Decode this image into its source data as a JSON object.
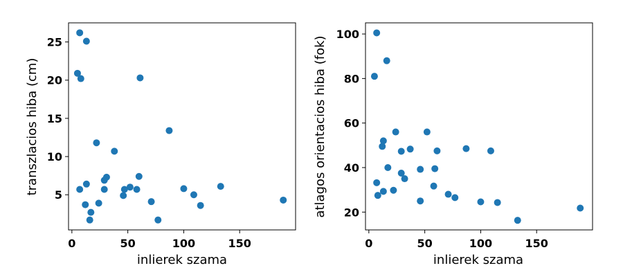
{
  "chart_data": [
    {
      "type": "scatter",
      "title": "",
      "xlabel": "inlierek szama",
      "ylabel": "transzlacios hiba (cm)",
      "xlim": [
        -3,
        200
      ],
      "ylim": [
        0.4,
        27.5
      ],
      "xticks": [
        0,
        50,
        100,
        150
      ],
      "yticks": [
        5,
        10,
        15,
        20,
        25
      ],
      "grid": false,
      "color": "#1f77b4",
      "points": [
        {
          "x": 7,
          "y": 26.2
        },
        {
          "x": 13,
          "y": 25.1
        },
        {
          "x": 5,
          "y": 20.9
        },
        {
          "x": 8,
          "y": 20.2
        },
        {
          "x": 61,
          "y": 20.3
        },
        {
          "x": 87,
          "y": 13.4
        },
        {
          "x": 22,
          "y": 11.8
        },
        {
          "x": 38,
          "y": 10.7
        },
        {
          "x": 60,
          "y": 7.4
        },
        {
          "x": 31,
          "y": 7.3
        },
        {
          "x": 29,
          "y": 6.9
        },
        {
          "x": 13,
          "y": 6.4
        },
        {
          "x": 52,
          "y": 6.0
        },
        {
          "x": 133,
          "y": 6.1
        },
        {
          "x": 7,
          "y": 5.7
        },
        {
          "x": 29,
          "y": 5.7
        },
        {
          "x": 47,
          "y": 5.7
        },
        {
          "x": 58,
          "y": 5.7
        },
        {
          "x": 100,
          "y": 5.8
        },
        {
          "x": 109,
          "y": 5.0
        },
        {
          "x": 46,
          "y": 4.9
        },
        {
          "x": 189,
          "y": 4.3
        },
        {
          "x": 24,
          "y": 3.9
        },
        {
          "x": 71,
          "y": 4.1
        },
        {
          "x": 12,
          "y": 3.7
        },
        {
          "x": 115,
          "y": 3.6
        },
        {
          "x": 17,
          "y": 2.7
        },
        {
          "x": 16,
          "y": 1.7
        },
        {
          "x": 77,
          "y": 1.7
        }
      ]
    },
    {
      "type": "scatter",
      "title": "",
      "xlabel": "inlierek szama",
      "ylabel": "atlagos orientacios hiba (fok)",
      "xlim": [
        -3,
        200
      ],
      "ylim": [
        12,
        105
      ],
      "xticks": [
        0,
        50,
        100,
        150
      ],
      "yticks": [
        20,
        40,
        60,
        80,
        100
      ],
      "grid": false,
      "color": "#1f77b4",
      "points": [
        {
          "x": 7,
          "y": 100.5
        },
        {
          "x": 16,
          "y": 88
        },
        {
          "x": 5,
          "y": 81
        },
        {
          "x": 24,
          "y": 56
        },
        {
          "x": 52,
          "y": 56
        },
        {
          "x": 13,
          "y": 52
        },
        {
          "x": 12,
          "y": 49.5
        },
        {
          "x": 87,
          "y": 48.5
        },
        {
          "x": 37,
          "y": 48.3
        },
        {
          "x": 29,
          "y": 47.3
        },
        {
          "x": 61,
          "y": 47.5
        },
        {
          "x": 109,
          "y": 47.5
        },
        {
          "x": 17,
          "y": 40
        },
        {
          "x": 46,
          "y": 39.2
        },
        {
          "x": 59,
          "y": 39.5
        },
        {
          "x": 29,
          "y": 37.5
        },
        {
          "x": 32,
          "y": 35
        },
        {
          "x": 7,
          "y": 33.2
        },
        {
          "x": 58,
          "y": 31.7
        },
        {
          "x": 13,
          "y": 29.3
        },
        {
          "x": 22,
          "y": 29.8
        },
        {
          "x": 71,
          "y": 28
        },
        {
          "x": 8,
          "y": 27.5
        },
        {
          "x": 77,
          "y": 26.5
        },
        {
          "x": 46,
          "y": 25
        },
        {
          "x": 100,
          "y": 24.6
        },
        {
          "x": 115,
          "y": 24.3
        },
        {
          "x": 189,
          "y": 21.8
        },
        {
          "x": 133,
          "y": 16.3
        }
      ]
    }
  ]
}
